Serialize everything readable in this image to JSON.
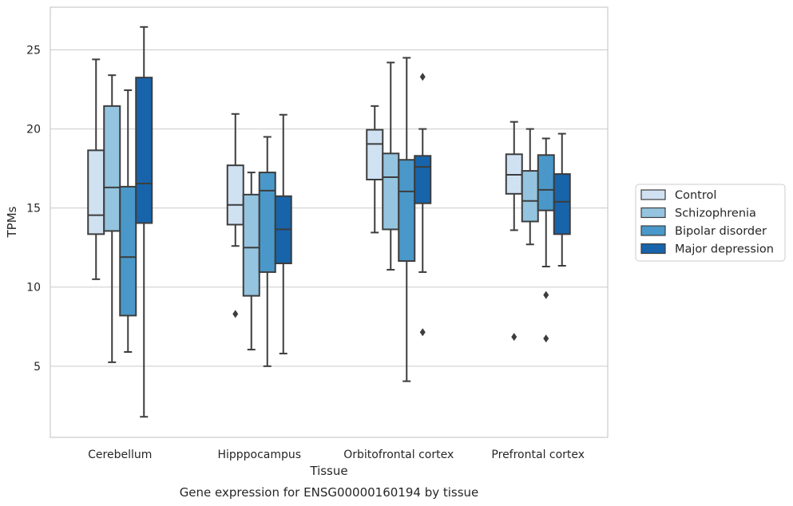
{
  "chart_data": {
    "type": "box",
    "xlabel": "Tissue",
    "ylabel": "TPMs",
    "caption": "Gene expression for ENSG00000160194 by tissue",
    "ylim": [
      0.5,
      27.7
    ],
    "yticks": [
      5,
      10,
      15,
      20,
      25
    ],
    "grid": "horizontal",
    "legend_position": "right",
    "categories": [
      "Cerebellum",
      "Hipppocampus",
      "Orbitofrontal cortex",
      "Prefrontal cortex"
    ],
    "series": [
      {
        "name": "Control",
        "color": "#d0e1f2",
        "boxes": [
          {
            "whislo": 10.5,
            "q1": 13.35,
            "median": 14.55,
            "q3": 18.65,
            "whishi": 24.4,
            "fliers": []
          },
          {
            "whislo": 12.6,
            "q1": 13.95,
            "median": 15.2,
            "q3": 17.7,
            "whishi": 20.95,
            "fliers": [
              8.3
            ]
          },
          {
            "whislo": 13.45,
            "q1": 16.8,
            "median": 19.05,
            "q3": 19.95,
            "whishi": 21.45,
            "fliers": []
          },
          {
            "whislo": 13.6,
            "q1": 15.9,
            "median": 17.1,
            "q3": 18.4,
            "whishi": 20.45,
            "fliers": [
              6.85
            ]
          }
        ]
      },
      {
        "name": "Schizophrenia",
        "color": "#94c4df",
        "boxes": [
          {
            "whislo": 5.25,
            "q1": 13.55,
            "median": 16.3,
            "q3": 21.45,
            "whishi": 23.4,
            "fliers": []
          },
          {
            "whislo": 6.05,
            "q1": 9.45,
            "median": 12.5,
            "q3": 15.85,
            "whishi": 17.25,
            "fliers": []
          },
          {
            "whislo": 11.1,
            "q1": 13.65,
            "median": 16.95,
            "q3": 18.45,
            "whishi": 24.2,
            "fliers": []
          },
          {
            "whislo": 12.7,
            "q1": 14.15,
            "median": 15.45,
            "q3": 17.35,
            "whishi": 20.0,
            "fliers": []
          }
        ]
      },
      {
        "name": "Bipolar disorder",
        "color": "#4a98c9",
        "boxes": [
          {
            "whislo": 5.9,
            "q1": 8.2,
            "median": 11.9,
            "q3": 16.35,
            "whishi": 22.45,
            "fliers": []
          },
          {
            "whislo": 5.0,
            "q1": 10.95,
            "median": 16.1,
            "q3": 17.25,
            "whishi": 19.5,
            "fliers": []
          },
          {
            "whislo": 4.05,
            "q1": 11.65,
            "median": 16.05,
            "q3": 18.05,
            "whishi": 24.5,
            "fliers": []
          },
          {
            "whislo": 11.3,
            "q1": 14.85,
            "median": 16.15,
            "q3": 18.35,
            "whishi": 19.4,
            "fliers": [
              9.5,
              6.75
            ]
          }
        ]
      },
      {
        "name": "Major depression",
        "color": "#1764ab",
        "boxes": [
          {
            "whislo": 1.8,
            "q1": 14.05,
            "median": 16.55,
            "q3": 23.25,
            "whishi": 26.45,
            "fliers": []
          },
          {
            "whislo": 5.8,
            "q1": 11.5,
            "median": 13.65,
            "q3": 15.75,
            "whishi": 20.9,
            "fliers": []
          },
          {
            "whislo": 10.95,
            "q1": 15.3,
            "median": 17.6,
            "q3": 18.3,
            "whishi": 20.0,
            "fliers": [
              23.3,
              7.15
            ]
          },
          {
            "whislo": 11.35,
            "q1": 13.35,
            "median": 15.4,
            "q3": 17.15,
            "whishi": 19.7,
            "fliers": []
          }
        ]
      }
    ]
  }
}
